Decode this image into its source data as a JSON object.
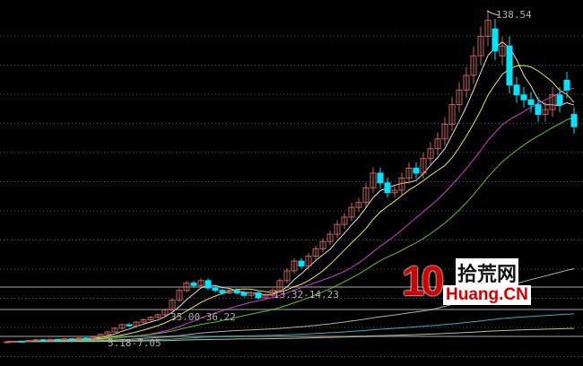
{
  "chart_data": {
    "type": "candlestick",
    "title": "",
    "ylim": [
      0,
      145
    ],
    "grid": true,
    "colors": {
      "up": "#c8645a",
      "down": "#00e5ff",
      "background": "#000000",
      "grid": "#555555"
    },
    "candles_open_close": [
      [
        6.8,
        7
      ],
      [
        7,
        7.2
      ],
      [
        7.2,
        7
      ],
      [
        7,
        7.5
      ],
      [
        7.5,
        7.8
      ],
      [
        7.8,
        7.4
      ],
      [
        7.4,
        8
      ],
      [
        8,
        7.8
      ],
      [
        7.8,
        8.2
      ],
      [
        8.2,
        8
      ],
      [
        8,
        8.5
      ],
      [
        8.5,
        8.3
      ],
      [
        8.3,
        9
      ],
      [
        9,
        10
      ],
      [
        10,
        11
      ],
      [
        11,
        12.5
      ],
      [
        12.5,
        14
      ],
      [
        14,
        13.5
      ],
      [
        13.5,
        15
      ],
      [
        15,
        16
      ],
      [
        16,
        17
      ],
      [
        17,
        18
      ],
      [
        18,
        20
      ],
      [
        20,
        24
      ],
      [
        24,
        28
      ],
      [
        28,
        31
      ],
      [
        31,
        30
      ],
      [
        30,
        32
      ],
      [
        32,
        29
      ],
      [
        29,
        28
      ],
      [
        28,
        27
      ],
      [
        27,
        28
      ],
      [
        28,
        27
      ],
      [
        27,
        26
      ],
      [
        26,
        27
      ],
      [
        27,
        25
      ],
      [
        25,
        26
      ],
      [
        26,
        28
      ],
      [
        28,
        32
      ],
      [
        32,
        36
      ],
      [
        36,
        40
      ],
      [
        40,
        38
      ],
      [
        38,
        42
      ],
      [
        42,
        45
      ],
      [
        45,
        48
      ],
      [
        48,
        51
      ],
      [
        51,
        55
      ],
      [
        55,
        58
      ],
      [
        58,
        62
      ],
      [
        62,
        64
      ],
      [
        64,
        70
      ],
      [
        70,
        76
      ],
      [
        76,
        72
      ],
      [
        72,
        68
      ],
      [
        68,
        69
      ],
      [
        69,
        74
      ],
      [
        74,
        78
      ],
      [
        78,
        76
      ],
      [
        76,
        82
      ],
      [
        82,
        86
      ],
      [
        86,
        90
      ],
      [
        90,
        96
      ],
      [
        96,
        104
      ],
      [
        104,
        110
      ],
      [
        110,
        116
      ],
      [
        116,
        124
      ],
      [
        124,
        132
      ],
      [
        132,
        138.5
      ],
      [
        135,
        126
      ],
      [
        124,
        128
      ],
      [
        128,
        112
      ],
      [
        112,
        108
      ],
      [
        108,
        106
      ],
      [
        106,
        104
      ],
      [
        104,
        100
      ],
      [
        100,
        102
      ],
      [
        102,
        108
      ],
      [
        108,
        104
      ],
      [
        114,
        110
      ],
      [
        100,
        95
      ]
    ],
    "moving_averages": [
      {
        "period": 5,
        "color": "#e0e0e0"
      },
      {
        "period": 10,
        "color": "#e8e840"
      },
      {
        "period": 20,
        "color": "#d040d0"
      },
      {
        "period": 30,
        "color": "#60c030"
      },
      {
        "period": 60,
        "color": "#b0b0b0"
      },
      {
        "period": 120,
        "color": "#30b0c0"
      },
      {
        "period": 250,
        "color": "#c0c080"
      }
    ],
    "annotations": {
      "high": "138.54",
      "label_1": "13.32-14.23",
      "label_2": "35.00-36.22",
      "label_3": "5.18-7.05"
    }
  },
  "watermark": {
    "number": "10",
    "chinese": "拾荒网",
    "domain": "Huang.CN"
  }
}
